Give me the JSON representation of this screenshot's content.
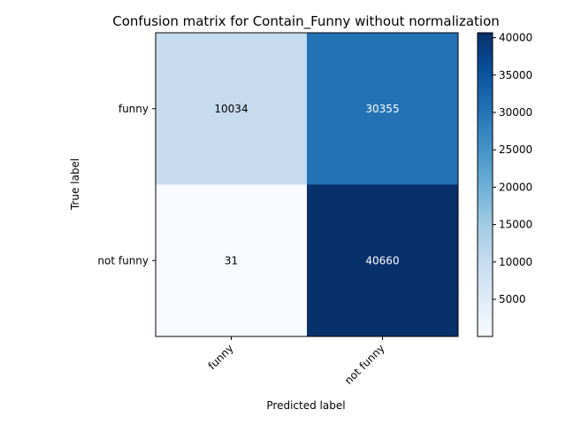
{
  "chart_data": {
    "type": "heatmap",
    "title": "Confusion matrix for Contain_Funny without normalization",
    "xlabel": "Predicted label",
    "ylabel": "True label",
    "x_categories": [
      "funny",
      "not funny"
    ],
    "y_categories": [
      "funny",
      "not funny"
    ],
    "values": [
      [
        10034,
        30355
      ],
      [
        31,
        40660
      ]
    ],
    "colormap": "Blues",
    "colorbar": {
      "ticks": [
        5000,
        10000,
        15000,
        20000,
        25000,
        30000,
        35000,
        40000
      ],
      "range": [
        31,
        40660
      ]
    },
    "grid": false,
    "legend": "none"
  }
}
